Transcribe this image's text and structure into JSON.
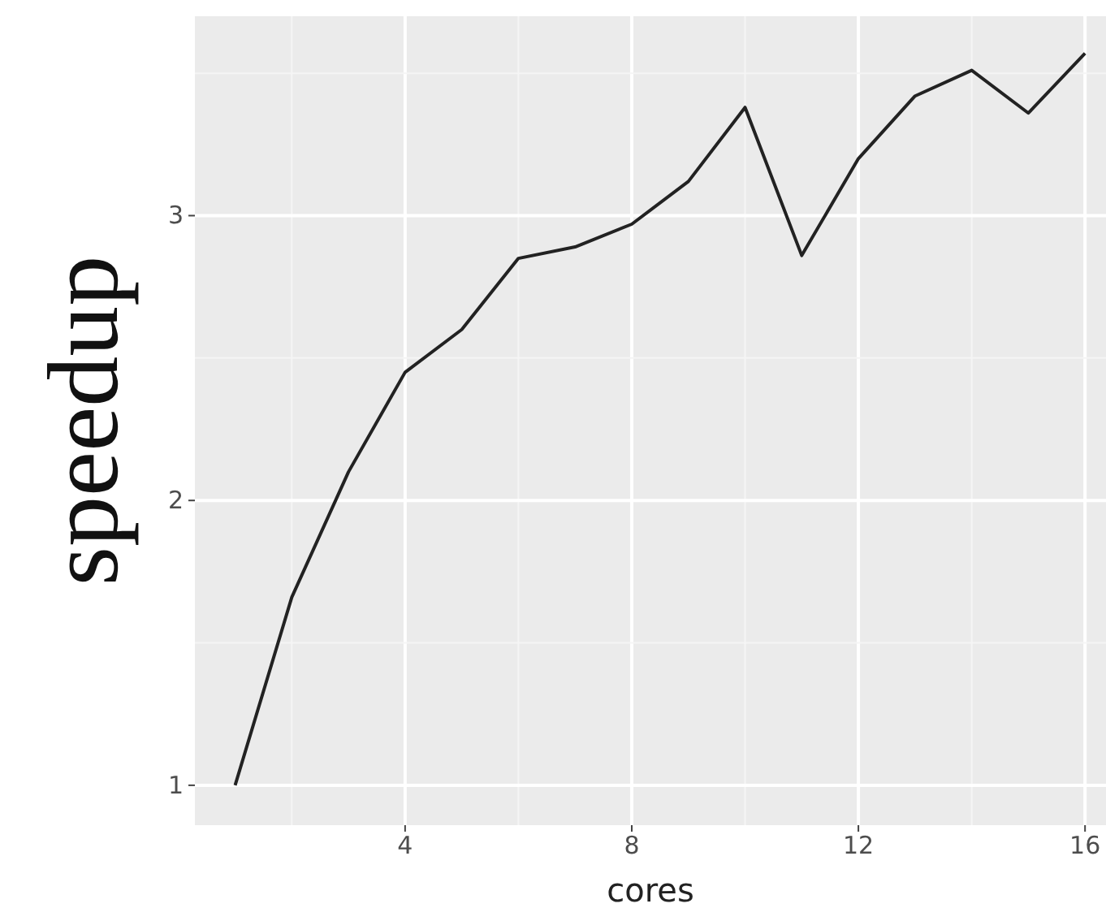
{
  "chart_data": {
    "type": "line",
    "xlabel": "cores",
    "ylabel": "speedup",
    "x": [
      1,
      2,
      3,
      4,
      5,
      6,
      7,
      8,
      9,
      10,
      11,
      12,
      13,
      14,
      15,
      16
    ],
    "series": [
      {
        "color": "#222222",
        "values": [
          1.0,
          1.66,
          2.1,
          2.45,
          2.6,
          2.85,
          2.89,
          2.97,
          3.12,
          3.38,
          2.86,
          3.2,
          3.42,
          3.51,
          3.36,
          3.57
        ]
      }
    ],
    "xlim": [
      0.29,
      16.37
    ],
    "ylim": [
      0.86,
      3.7
    ],
    "xticks": [
      4,
      8,
      12,
      16
    ],
    "yticks": [
      1,
      2,
      3
    ],
    "grid": true,
    "marker": "none",
    "line_style": "solid"
  }
}
